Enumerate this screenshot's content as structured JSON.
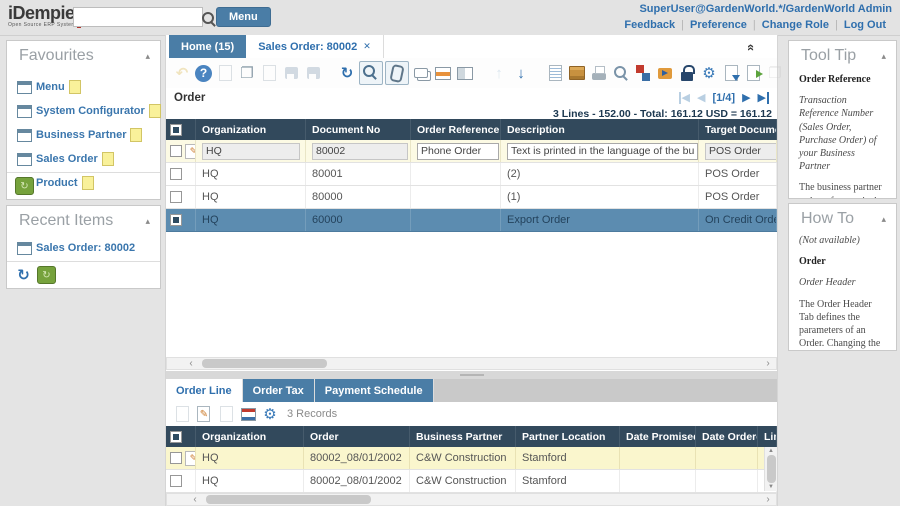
{
  "header": {
    "logo_title": "iDempiere",
    "logo_subtitle": "Open Source ERP System",
    "search_value": "",
    "menu_button": "Menu",
    "user_info": "SuperUser@GardenWorld.*/GardenWorld Admin",
    "links": [
      "Feedback",
      "Preference",
      "Change Role",
      "Log Out"
    ]
  },
  "sidebar": {
    "favourites": {
      "title": "Favourites",
      "items": [
        {
          "label": "Menu"
        },
        {
          "label": "System Configurator"
        },
        {
          "label": "Business Partner"
        },
        {
          "label": "Sales Order"
        },
        {
          "label": "Product"
        }
      ]
    },
    "recent": {
      "title": "Recent Items",
      "items": [
        {
          "label": "Sales Order: 80002"
        }
      ]
    }
  },
  "tabs": [
    {
      "label": "Home (15)"
    },
    {
      "label": "Sales Order: 80002"
    }
  ],
  "toolbar": {
    "icons": [
      {
        "name": "ignore-icon",
        "glyph": "↶",
        "fg": "#dfbf62",
        "enabled": false
      },
      {
        "name": "help-icon",
        "glyph": "?",
        "shape": "circle",
        "enabled": true
      },
      {
        "name": "new-record-icon",
        "shape": "page",
        "enabled": false
      },
      {
        "name": "copy-record-icon",
        "glyph": "❐",
        "fg": "#8fa0ac",
        "enabled": true
      },
      {
        "name": "delete-record-icon",
        "shape": "page",
        "enabled": false
      },
      {
        "name": "save-icon",
        "shape": "floppy",
        "enabled": false
      },
      {
        "name": "save-create-new-icon",
        "shape": "floppy",
        "enabled": false
      },
      {
        "name": "refresh-icon",
        "glyph": "↻",
        "fg": "#2f6fad",
        "enabled": true,
        "gapBefore": true
      },
      {
        "name": "find-record-icon",
        "shape": "magnifier",
        "fg": "#4c708e",
        "boxed": true,
        "enabled": true
      },
      {
        "name": "attachment-icon",
        "shape": "paperclip",
        "fg": "#5f7689",
        "boxed": true,
        "enabled": true
      },
      {
        "name": "chat-icon",
        "shape": "bubble",
        "fg": "#8a99a5",
        "enabled": true
      },
      {
        "name": "menu-records-icon",
        "shape": "window-orange",
        "enabled": true
      },
      {
        "name": "toggle-form-grid-icon",
        "shape": "window-split",
        "enabled": true
      },
      {
        "name": "parent-record-icon",
        "glyph": "↑",
        "fg": "#a9c4da",
        "enabled": false,
        "gapBefore": true
      },
      {
        "name": "detail-record-icon",
        "glyph": "↓",
        "fg": "#2f6fad",
        "enabled": true
      },
      {
        "name": "report-icon",
        "shape": "page-blue",
        "enabled": true,
        "gapBefore": true
      },
      {
        "name": "archive-icon",
        "shape": "archive",
        "enabled": true
      },
      {
        "name": "print-icon",
        "shape": "printer",
        "enabled": true
      },
      {
        "name": "print-preview-icon",
        "shape": "magnifier",
        "fg": "#7a93a8",
        "enabled": true
      },
      {
        "name": "process-icon",
        "shape": "process",
        "enabled": true
      },
      {
        "name": "workflow-icon",
        "shape": "workflow",
        "enabled": true
      },
      {
        "name": "lock-icon",
        "shape": "lock",
        "enabled": true
      },
      {
        "name": "customize-window-icon",
        "glyph": "⚙",
        "fg": "#3a7ab8",
        "enabled": true
      },
      {
        "name": "export-icon",
        "shape": "export",
        "enabled": true
      },
      {
        "name": "file-import-icon",
        "shape": "import",
        "enabled": true
      },
      {
        "name": "post-it-icon",
        "glyph": "❐",
        "fg": "#c9c9c9",
        "enabled": false
      }
    ]
  },
  "breadcrumb": {
    "title": "Order",
    "paging": "[1/4]"
  },
  "status_line": "3 Lines - 152.00 - Total: 161.12 USD = 161.12",
  "main_grid": {
    "columns": [
      "Organization",
      "Document No",
      "Order Reference",
      "Description",
      "Target Document Type"
    ],
    "rows": [
      {
        "organization": "HQ",
        "document_no": "80002",
        "order_reference": "Phone Order",
        "description": "Text is printed in the language of the business p",
        "target_document_type": "POS Order"
      },
      {
        "organization": "HQ",
        "document_no": "80001",
        "order_reference": "",
        "description": "(2)",
        "target_document_type": "POS Order"
      },
      {
        "organization": "HQ",
        "document_no": "80000",
        "order_reference": "",
        "description": "(1)",
        "target_document_type": "POS Order"
      },
      {
        "organization": "HQ",
        "document_no": "60000",
        "order_reference": "",
        "description": "Export Order",
        "target_document_type": "On Credit Order"
      }
    ]
  },
  "detail": {
    "tabs": [
      {
        "label": "Order Line"
      },
      {
        "label": "Order Tax"
      },
      {
        "label": "Payment Schedule"
      }
    ],
    "toolbar_icons": [
      {
        "name": "new-record-icon",
        "shape": "page",
        "enabled": false
      },
      {
        "name": "edit-record-icon",
        "glyph": "✎",
        "fg": "#cc7a29",
        "shape": "page-edit",
        "enabled": true
      },
      {
        "name": "delete-record-icon",
        "shape": "page",
        "enabled": false
      },
      {
        "name": "quick-form-icon",
        "shape": "window-quick",
        "enabled": true
      },
      {
        "name": "process-icon",
        "glyph": "⚙",
        "fg": "#3a7ab8",
        "enabled": true
      }
    ],
    "records_label": "3 Records",
    "grid": {
      "columns": [
        "Organization",
        "Order",
        "Business Partner",
        "Partner Location",
        "Date Promised",
        "Date Ordered",
        "Line No"
      ],
      "rows": [
        {
          "organization": "HQ",
          "order": "80002_08/01/2002",
          "business_partner": "C&W Construction",
          "partner_location": "Stamford",
          "date_promised": "",
          "date_ordered": "",
          "line_no": ""
        },
        {
          "organization": "HQ",
          "order": "80002_08/01/2002",
          "business_partner": "C&W Construction",
          "partner_location": "Stamford",
          "date_promised": "",
          "date_ordered": "",
          "line_no": ""
        }
      ]
    }
  },
  "tool_tip": {
    "title": "Tool Tip",
    "heading": "Order Reference",
    "summary": "Transaction Reference Number (Sales Order, Purchase Order) of your Business Partner",
    "body": "The business partner order reference is the order reference for this specific transaction; Often Purchase Order numbers are given to print on Invoices for easier reference. A standard number can be defined in the Business Partner (Customer) window."
  },
  "how_to": {
    "title": "How To",
    "not_available": "(Not available)",
    "heading": "Order",
    "subheading": "Order Header",
    "body": "The Order Header Tab defines the parameters of an Order. Changing the Organization, Business Partner, Warehouse, Date Promised, etc. changes these values on all the lines."
  },
  "colors": {
    "accent_blue": "#4a7da6",
    "link_blue": "#2f6fad",
    "grid_header": "#32495c",
    "selected_row": "#5c8cb0",
    "edit_row": "#fcfae4",
    "detail_current_row": "#faf6cd"
  }
}
